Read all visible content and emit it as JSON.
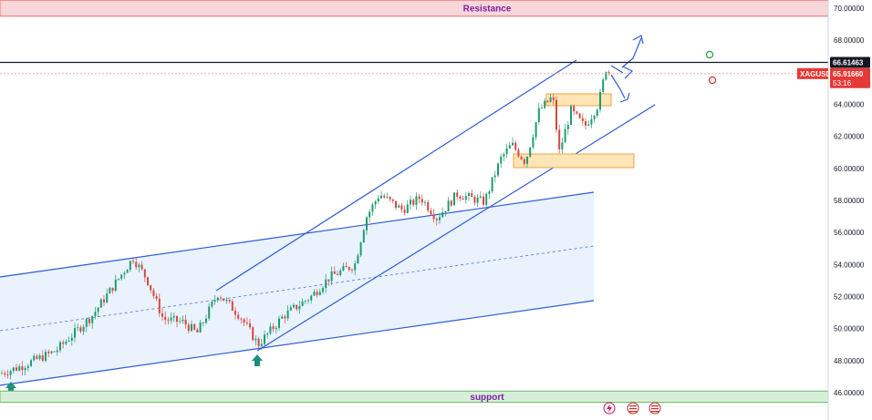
{
  "chart_data": {
    "type": "candlestick",
    "symbol": "XAGUSD",
    "current_price": "65.91660",
    "countdown": "53:16",
    "marked_level": "66.61463",
    "ylim": [
      45.5,
      70.5
    ],
    "y_ticks": [
      "46.00000",
      "48.00000",
      "50.00000",
      "52.00000",
      "54.00000",
      "56.00000",
      "58.00000",
      "60.00000",
      "62.00000",
      "64.00000",
      "66.00000",
      "68.00000",
      "70.00000"
    ],
    "y_tick_values": [
      46,
      48,
      50,
      52,
      54,
      56,
      58,
      60,
      62,
      64,
      66,
      68,
      70
    ],
    "zones": [
      {
        "name": "Resistance",
        "low": 69.5,
        "high": 71.2,
        "color": "#f8d7da",
        "border": "#e57373"
      },
      {
        "name": "support",
        "low": 45.3,
        "high": 46.1,
        "color": "#d7efd9",
        "border": "#66bb6a"
      }
    ],
    "key_points": [
      {
        "x": 0,
        "y": 47.2
      },
      {
        "x": 20,
        "y": 47.6
      },
      {
        "x": 60,
        "y": 48.6
      },
      {
        "x": 100,
        "y": 50.8
      },
      {
        "x": 130,
        "y": 53.2
      },
      {
        "x": 145,
        "y": 54.4
      },
      {
        "x": 160,
        "y": 53.1
      },
      {
        "x": 178,
        "y": 50.6
      },
      {
        "x": 200,
        "y": 50.4
      },
      {
        "x": 215,
        "y": 49.7
      },
      {
        "x": 238,
        "y": 52.2
      },
      {
        "x": 262,
        "y": 50.8
      },
      {
        "x": 282,
        "y": 49.0
      },
      {
        "x": 310,
        "y": 50.8
      },
      {
        "x": 340,
        "y": 52.0
      },
      {
        "x": 360,
        "y": 53.2
      },
      {
        "x": 388,
        "y": 54.0
      },
      {
        "x": 400,
        "y": 56.9
      },
      {
        "x": 415,
        "y": 58.4
      },
      {
        "x": 440,
        "y": 57.4
      },
      {
        "x": 460,
        "y": 58.2
      },
      {
        "x": 478,
        "y": 56.9
      },
      {
        "x": 500,
        "y": 58.4
      },
      {
        "x": 530,
        "y": 57.9
      },
      {
        "x": 548,
        "y": 60.6
      },
      {
        "x": 560,
        "y": 61.5
      },
      {
        "x": 575,
        "y": 60.4
      },
      {
        "x": 590,
        "y": 63.6
      },
      {
        "x": 605,
        "y": 64.5
      },
      {
        "x": 612,
        "y": 61.0
      },
      {
        "x": 625,
        "y": 63.6
      },
      {
        "x": 640,
        "y": 62.6
      },
      {
        "x": 655,
        "y": 64.0
      },
      {
        "x": 664,
        "y": 66.4
      },
      {
        "x": 668,
        "y": 65.9
      }
    ]
  }
}
